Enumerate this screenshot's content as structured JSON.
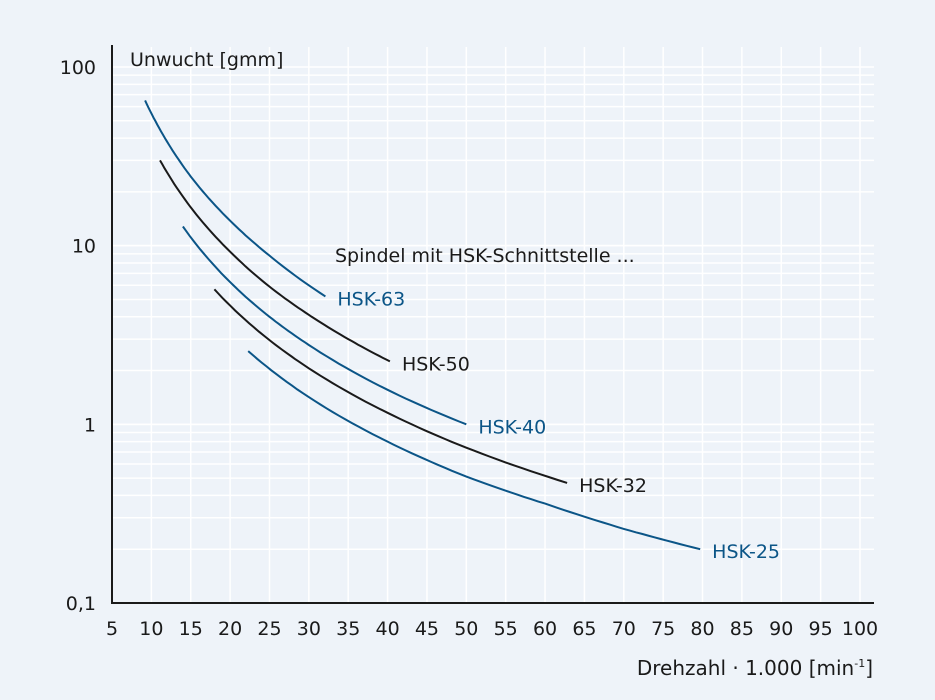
{
  "chart_data": {
    "type": "line",
    "title": "Spindel mit HSK-Schnittstelle ...",
    "ylabel": "Unwucht [gmm]",
    "xlabel": {
      "text": "Drehzahl · 1.000 [min",
      "sup": "-1",
      "close": "]"
    },
    "x_scale": "linear",
    "y_scale": "log",
    "xlim": [
      5,
      100
    ],
    "ylim": [
      0.1,
      100
    ],
    "x_ticks": [
      "5",
      "10",
      "15",
      "20",
      "25",
      "30",
      "35",
      "40",
      "45",
      "50",
      "55",
      "60",
      "65",
      "70",
      "75",
      "80",
      "85",
      "90",
      "95",
      "100"
    ],
    "y_ticks": [
      {
        "value": 100,
        "label": "100"
      },
      {
        "value": 10,
        "label": "10"
      },
      {
        "value": 1,
        "label": "1"
      },
      {
        "value": 0.1,
        "label": "0,1"
      }
    ],
    "grid": true,
    "colors": {
      "blue": "#0b5587",
      "black": "#1a1a1a",
      "grid": "#ffffff",
      "background": "#eef3f9"
    },
    "series": [
      {
        "name": "HSK-63",
        "color": "#0b5587",
        "x": [
          9.2,
          12,
          15,
          20,
          25,
          32.1
        ],
        "y": [
          65,
          38.2,
          24.4,
          13.8,
          8.8,
          5.2
        ]
      },
      {
        "name": "HSK-50",
        "color": "#1a1a1a",
        "x": [
          11.1,
          15,
          20,
          25,
          30,
          35,
          40.3
        ],
        "y": [
          30,
          16.4,
          9.25,
          5.9,
          4.1,
          3.0,
          2.25
        ]
      },
      {
        "name": "HSK-40",
        "color": "#0b5587",
        "x": [
          14,
          20,
          25,
          30,
          40,
          50
        ],
        "y": [
          12.8,
          6.25,
          4.0,
          2.78,
          1.56,
          1.0
        ]
      },
      {
        "name": "HSK-32",
        "color": "#1a1a1a",
        "x": [
          18,
          25,
          30,
          40,
          50,
          62.8
        ],
        "y": [
          5.7,
          2.96,
          2.06,
          1.16,
          0.74,
          0.47
        ]
      },
      {
        "name": "HSK-25",
        "color": "#0b5587",
        "x": [
          22.3,
          30,
          40,
          50,
          60,
          70,
          79.7
        ],
        "y": [
          2.57,
          1.42,
          0.8,
          0.51,
          0.36,
          0.26,
          0.2
        ]
      }
    ]
  }
}
